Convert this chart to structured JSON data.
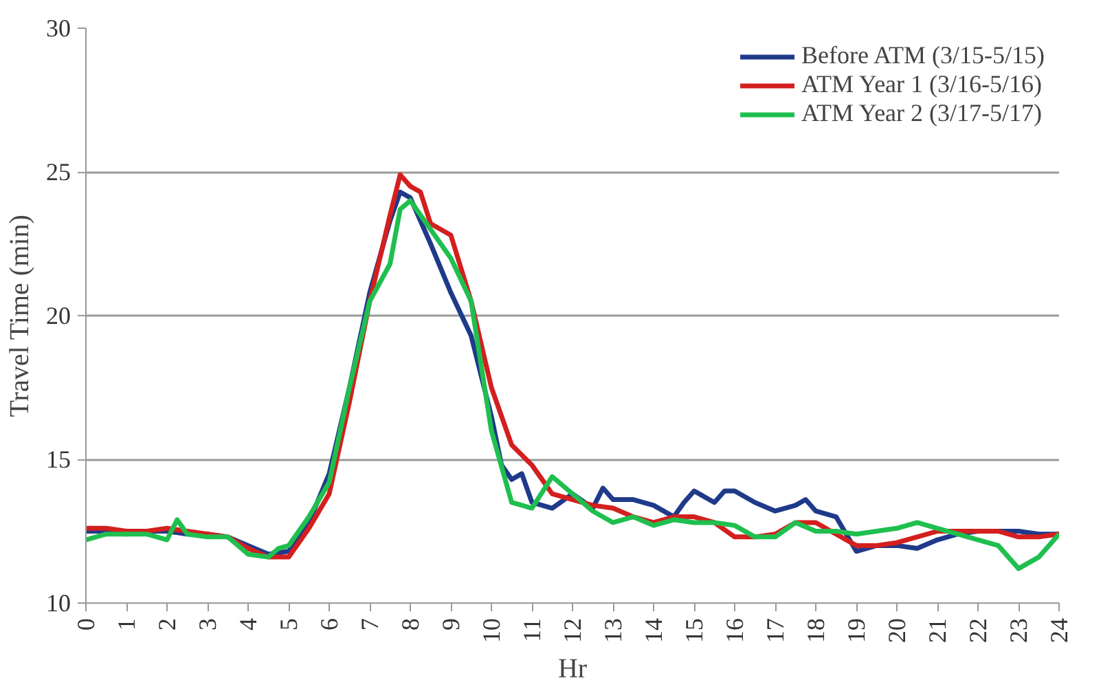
{
  "chart_data": {
    "type": "line",
    "xlabel": "Hr",
    "ylabel": "Travel Time (min)",
    "xlim": [
      0,
      24
    ],
    "xticks": [
      0,
      1,
      2,
      3,
      4,
      5,
      6,
      7,
      8,
      9,
      10,
      11,
      12,
      13,
      14,
      15,
      16,
      17,
      18,
      19,
      20,
      21,
      22,
      23,
      24
    ],
    "ylim": [
      10,
      30
    ],
    "yticks": [
      10,
      15,
      20,
      25,
      30
    ],
    "grid": "y",
    "legend": "top right",
    "marker": "none",
    "line_style": "solid",
    "series": [
      {
        "name": "Before ATM (3/15-5/15)",
        "color": "#1f3a8a",
        "x": [
          0,
          0.5,
          1,
          1.5,
          2,
          2.5,
          3,
          3.5,
          4,
          4.5,
          5,
          5.5,
          6,
          6.5,
          7,
          7.5,
          7.75,
          8,
          8.5,
          9,
          9.5,
          10,
          10.25,
          10.5,
          10.75,
          11,
          11.5,
          12,
          12.5,
          12.75,
          13,
          13.5,
          14,
          14.5,
          14.75,
          15,
          15.5,
          15.75,
          16,
          16.5,
          17,
          17.5,
          17.75,
          18,
          18.5,
          19,
          19.5,
          20,
          20.5,
          21,
          21.5,
          22,
          22.5,
          23,
          23.5,
          24
        ],
        "values": [
          12.5,
          12.5,
          12.4,
          12.5,
          12.5,
          12.4,
          12.4,
          12.3,
          12.0,
          11.7,
          11.8,
          12.8,
          14.5,
          17.5,
          20.8,
          23.3,
          24.3,
          24.1,
          22.5,
          20.8,
          19.3,
          16.5,
          14.8,
          14.3,
          14.5,
          13.5,
          13.3,
          13.8,
          13.3,
          14.0,
          13.6,
          13.6,
          13.4,
          13.0,
          13.5,
          13.9,
          13.5,
          13.9,
          13.9,
          13.5,
          13.2,
          13.4,
          13.6,
          13.2,
          13.0,
          11.8,
          12.0,
          12.0,
          11.9,
          12.2,
          12.4,
          12.5,
          12.5,
          12.5,
          12.4,
          12.4
        ]
      },
      {
        "name": "ATM Year 1 (3/16-5/16)",
        "color": "#d41f1f",
        "x": [
          0,
          0.5,
          1,
          1.5,
          2,
          2.5,
          3,
          3.5,
          4,
          4.5,
          5,
          5.5,
          6,
          6.5,
          7,
          7.5,
          7.75,
          8,
          8.25,
          8.5,
          9,
          9.5,
          10,
          10.5,
          11,
          11.5,
          12,
          12.5,
          13,
          13.5,
          14,
          14.5,
          15,
          15.5,
          16,
          16.5,
          17,
          17.5,
          18,
          18.5,
          19,
          19.5,
          20,
          20.5,
          21,
          21.5,
          22,
          22.5,
          23,
          23.5,
          24
        ],
        "values": [
          12.6,
          12.6,
          12.5,
          12.5,
          12.6,
          12.5,
          12.4,
          12.3,
          11.9,
          11.6,
          11.6,
          12.6,
          13.8,
          17.0,
          20.5,
          23.5,
          24.9,
          24.5,
          24.3,
          23.2,
          22.8,
          20.5,
          17.5,
          15.5,
          14.8,
          13.8,
          13.6,
          13.4,
          13.3,
          13.0,
          12.8,
          13.0,
          13.0,
          12.8,
          12.3,
          12.3,
          12.4,
          12.8,
          12.8,
          12.4,
          12.0,
          12.0,
          12.1,
          12.3,
          12.5,
          12.5,
          12.5,
          12.5,
          12.3,
          12.3,
          12.4
        ]
      },
      {
        "name": "ATM Year 2 (3/17-5/17)",
        "color": "#1fbf4f",
        "x": [
          0,
          0.5,
          1,
          1.5,
          2,
          2.25,
          2.5,
          3,
          3.5,
          4,
          4.5,
          4.75,
          5,
          5.5,
          6,
          6.5,
          7,
          7.5,
          7.75,
          8,
          8.5,
          9,
          9.5,
          10,
          10.5,
          11,
          11.5,
          12,
          12.5,
          13,
          13.5,
          14,
          14.5,
          15,
          15.5,
          16,
          16.5,
          17,
          17.5,
          18,
          18.5,
          19,
          19.5,
          20,
          20.5,
          21,
          21.5,
          22,
          22.5,
          23,
          23.5,
          24
        ],
        "values": [
          12.2,
          12.4,
          12.4,
          12.4,
          12.2,
          12.9,
          12.4,
          12.3,
          12.3,
          11.7,
          11.6,
          11.9,
          12.0,
          13.0,
          14.2,
          17.5,
          20.5,
          21.8,
          23.7,
          24.0,
          23.0,
          22.0,
          20.5,
          16.0,
          13.5,
          13.3,
          14.4,
          13.8,
          13.2,
          12.8,
          13.0,
          12.7,
          12.9,
          12.8,
          12.8,
          12.7,
          12.3,
          12.3,
          12.8,
          12.5,
          12.5,
          12.4,
          12.5,
          12.6,
          12.8,
          12.6,
          12.4,
          12.2,
          12.0,
          11.2,
          11.6,
          12.4
        ]
      }
    ]
  }
}
